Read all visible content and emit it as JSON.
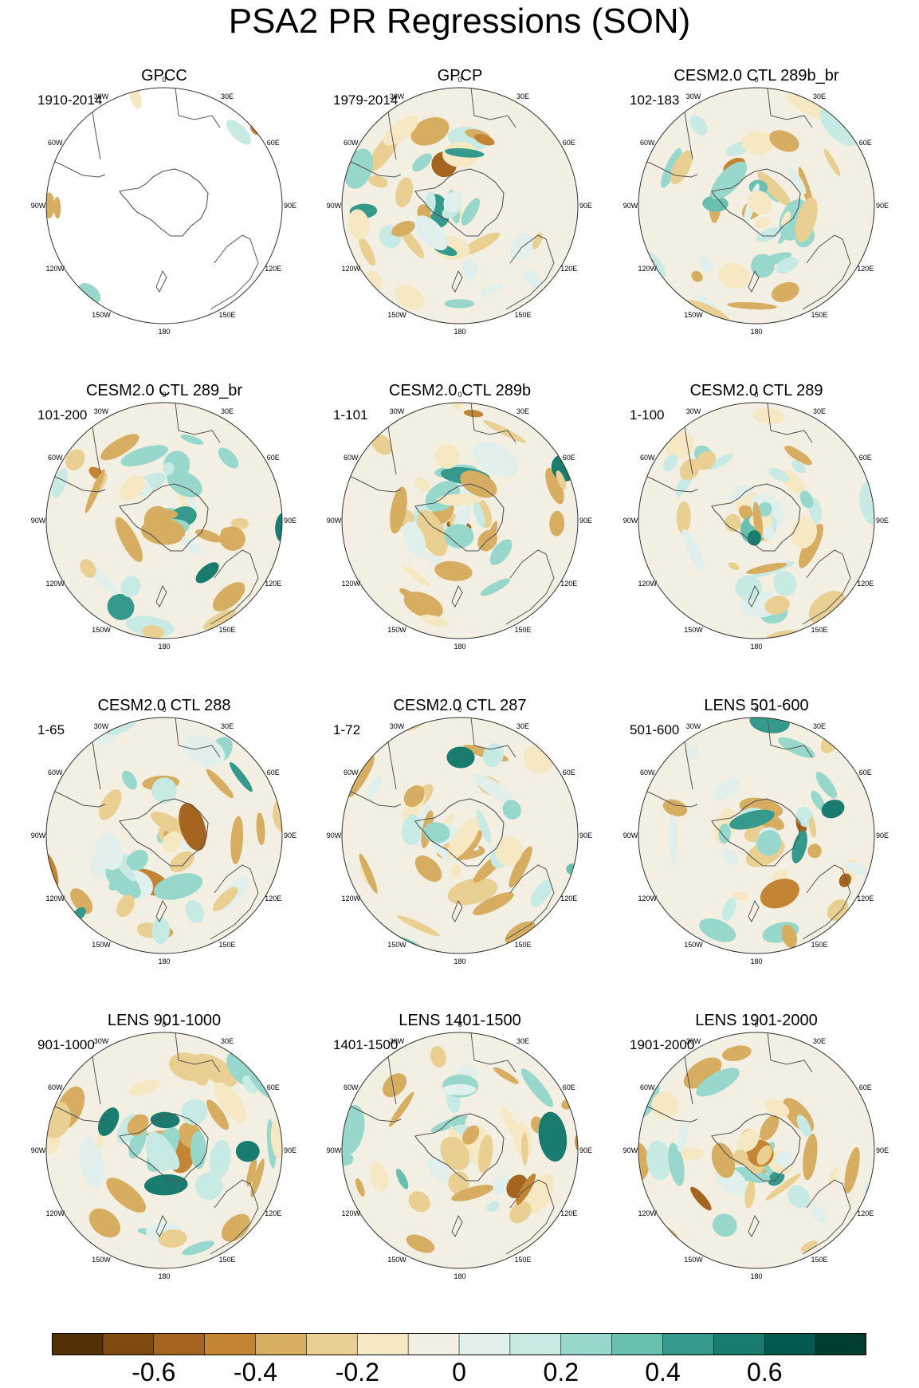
{
  "page": {
    "title": "PSA2 PR Regressions (SON)"
  },
  "panels": [
    {
      "title": "GPCC",
      "period": "1910-2014",
      "data_coverage": "land-only"
    },
    {
      "title": "GPCP",
      "period": "1979-2014",
      "data_coverage": "global"
    },
    {
      "title": "CESM2.0 CTL 289b_br",
      "period": "102-183",
      "data_coverage": "global"
    },
    {
      "title": "CESM2.0 CTL 289_br",
      "period": "101-200",
      "data_coverage": "global"
    },
    {
      "title": "CESM2.0 CTL 289b",
      "period": "1-101",
      "data_coverage": "global"
    },
    {
      "title": "CESM2.0 CTL 289",
      "period": "1-100",
      "data_coverage": "global"
    },
    {
      "title": "CESM2.0 CTL 288",
      "period": "1-65",
      "data_coverage": "global"
    },
    {
      "title": "CESM2.0 CTL 287",
      "period": "1-72",
      "data_coverage": "global"
    },
    {
      "title": "LENS 501-600",
      "period": "501-600",
      "data_coverage": "global"
    },
    {
      "title": "LENS 901-1000",
      "period": "901-1000",
      "data_coverage": "global"
    },
    {
      "title": "LENS 1401-1500",
      "period": "1401-1500",
      "data_coverage": "global"
    },
    {
      "title": "LENS 1901-2000",
      "period": "1901-2000",
      "data_coverage": "global"
    }
  ],
  "map": {
    "projection": "south polar stereographic",
    "longitude_labels": [
      "0",
      "30E",
      "60E",
      "90E",
      "120E",
      "150E",
      "180",
      "150W",
      "120W",
      "90W",
      "60W",
      "30W"
    ]
  },
  "colorbar": {
    "colors": [
      "#543005",
      "#7f4a10",
      "#a56520",
      "#c38533",
      "#d6ad61",
      "#e9cf91",
      "#f6e8c3",
      "#f3efe2",
      "#e2f0ed",
      "#c7eae4",
      "#98d8cc",
      "#6ac0b0",
      "#359a8b",
      "#1a7b6f",
      "#055a50",
      "#003d31"
    ],
    "tick_labels": [
      "-0.6",
      "-0.4",
      "-0.2",
      "0",
      "0.2",
      "0.4",
      "0.6"
    ]
  }
}
